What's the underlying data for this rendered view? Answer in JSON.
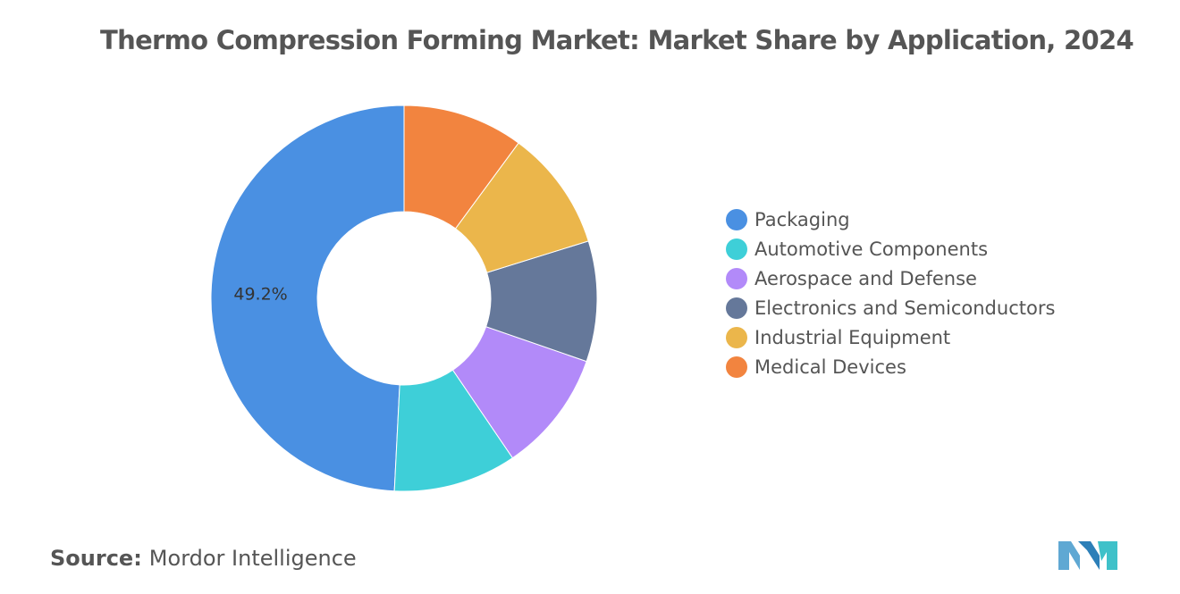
{
  "chart_data": {
    "type": "pie",
    "donut": true,
    "title": "Thermo Compression Forming Market: Market Share by Application, 2024",
    "categories": [
      "Packaging",
      "Automotive Components",
      "Aerospace and Defense",
      "Electronics and Semiconductors",
      "Industrial Equipment",
      "Medical Devices"
    ],
    "values": [
      49.2,
      10.3,
      10.2,
      10.1,
      10.1,
      10.1
    ],
    "data_labels": [
      "49.2%",
      "",
      "",
      "",
      "",
      ""
    ],
    "colors": [
      "#4a90e2",
      "#3ecfd8",
      "#b28af9",
      "#65789a",
      "#ebb64b",
      "#f2843f"
    ],
    "legend_position": "right"
  },
  "source": {
    "label": "Source:",
    "value": "Mordor Intelligence"
  },
  "logo": {
    "colors": [
      "#5fa8d3",
      "#2c7fb8",
      "#3fc1c9"
    ]
  }
}
